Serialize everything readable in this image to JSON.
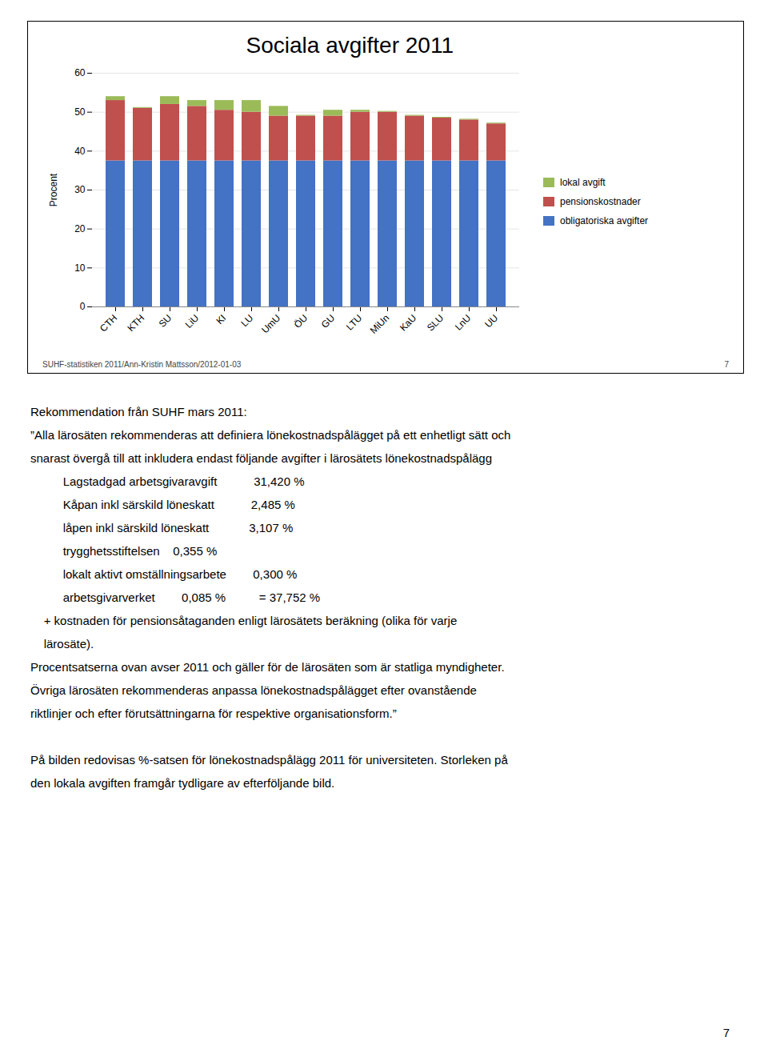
{
  "chart_data": {
    "type": "bar",
    "stacked": true,
    "title": "Sociala avgifter 2011",
    "ylabel": "Procent",
    "categories": [
      "CTH",
      "KTH",
      "SU",
      "LiU",
      "KI",
      "LU",
      "UmU",
      "ÖU",
      "GU",
      "LTU",
      "MiUn",
      "KaU",
      "SLU",
      "LnU",
      "UU"
    ],
    "series": [
      {
        "name": "obligatoriska avgifter",
        "color": "#4472C4",
        "values": [
          37.5,
          37.5,
          37.5,
          37.5,
          37.5,
          37.5,
          37.5,
          37.5,
          37.5,
          37.5,
          37.5,
          37.5,
          37.5,
          37.5,
          37.5
        ]
      },
      {
        "name": "pensionskostnader",
        "color": "#C0504D",
        "values": [
          15.5,
          13.5,
          14.5,
          14.0,
          13.0,
          12.5,
          11.5,
          11.5,
          11.5,
          12.5,
          12.5,
          11.5,
          11.0,
          10.5,
          9.5
        ]
      },
      {
        "name": "lokal avgift",
        "color": "#9BBB59",
        "values": [
          1.0,
          0.2,
          2.0,
          1.5,
          2.5,
          3.0,
          2.5,
          0.2,
          1.5,
          0.5,
          0.2,
          0.2,
          0.2,
          0.2,
          0.2
        ]
      }
    ],
    "ylim": [
      0,
      60
    ],
    "yticks": [
      0,
      10,
      20,
      30,
      40,
      50,
      60
    ],
    "grid": true,
    "legend": "right",
    "annotations": [
      "SUHF-statistiken 2011/Ann-Kristin Mattsson/2012-01-03",
      "7",
      "Rekommendation från SUHF mars 2011:",
      "”Alla lärosäten rekommenderas att definiera lönekostnadspålägget på ett enhetligt sätt och",
      "snarast övergå till att inkludera endast följande avgifter i lärosätets lönekostnadspålägg",
      "    Lagstadgad arbetsgivaravgift           31,420 %",
      "    Kåpan inkl särskild löneskatt           2,485 %",
      "    låpen inkl särskild löneskatt            3,107 %",
      "    trygghetsstiftelsen    0,355 %",
      "    lokalt aktivt omställningsarbete        0,300 %",
      "    arbetsgivarverket        0,085 %          = 37,752 %",
      "    + kostnaden för pensionsåtaganden enligt lärosätets beräkning (olika för varje",
      "    lärosäte).",
      "Procentsatserna ovan avser 2011 och gäller för de lärosäten som är statliga myndigheter.",
      "Övriga lärosäten rekommenderas anpassa lönekostnadspålägget efter ovanstående",
      "riktlinjer och efter förutsättningarna för respektive organisationsform.”",
      "På bilden redovisas %-satsen för lönekostnadspålägg 2011 för universiteten. Storleken på",
      "den lokala avgiften framgår tydligare av efterföljande bild.",
      "7"
    ]
  }
}
